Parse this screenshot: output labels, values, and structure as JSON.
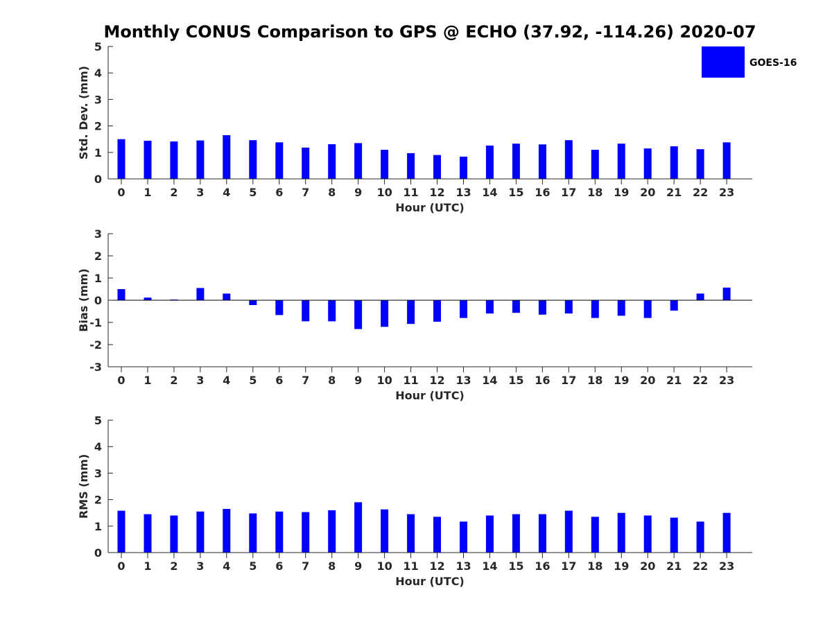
{
  "title": "Monthly CONUS Comparison to GPS @ ECHO (37.92, -114.26) 2020-07",
  "legend": {
    "label": "GOES-16",
    "color": "#0000ff",
    "placement": "top-right"
  },
  "bar_color": "#0000ff",
  "chart_data": [
    {
      "type": "bar",
      "categories": [
        "0",
        "1",
        "2",
        "3",
        "4",
        "5",
        "6",
        "7",
        "8",
        "9",
        "10",
        "11",
        "12",
        "13",
        "14",
        "15",
        "16",
        "17",
        "18",
        "19",
        "20",
        "21",
        "22",
        "23"
      ],
      "series": [
        {
          "name": "GOES-16",
          "values": [
            1.5,
            1.44,
            1.41,
            1.45,
            1.65,
            1.46,
            1.38,
            1.18,
            1.31,
            1.35,
            1.1,
            0.97,
            0.9,
            0.84,
            1.26,
            1.33,
            1.3,
            1.46,
            1.1,
            1.33,
            1.15,
            1.23,
            1.12,
            1.38
          ]
        }
      ],
      "ylabel": "Std. Dev. (mm)",
      "xlabel": "Hour (UTC)",
      "ylim": [
        0,
        5
      ],
      "yticks": [
        "0",
        "1",
        "2",
        "3",
        "4",
        "5"
      ],
      "grid": false
    },
    {
      "type": "bar",
      "categories": [
        "0",
        "1",
        "2",
        "3",
        "4",
        "5",
        "6",
        "7",
        "8",
        "9",
        "10",
        "11",
        "12",
        "13",
        "14",
        "15",
        "16",
        "17",
        "18",
        "19",
        "20",
        "21",
        "22",
        "23"
      ],
      "series": [
        {
          "name": "GOES-16",
          "values": [
            0.5,
            0.12,
            0.03,
            0.55,
            0.3,
            -0.22,
            -0.67,
            -0.95,
            -0.95,
            -1.3,
            -1.2,
            -1.07,
            -0.97,
            -0.8,
            -0.6,
            -0.57,
            -0.65,
            -0.6,
            -0.8,
            -0.7,
            -0.8,
            -0.47,
            0.3,
            0.57
          ]
        }
      ],
      "ylabel": "Bias (mm)",
      "xlabel": "Hour (UTC)",
      "ylim": [
        -3,
        3
      ],
      "yticks": [
        "-3",
        "-2",
        "-1",
        "0",
        "1",
        "2",
        "3"
      ],
      "grid": false
    },
    {
      "type": "bar",
      "categories": [
        "0",
        "1",
        "2",
        "3",
        "4",
        "5",
        "6",
        "7",
        "8",
        "9",
        "10",
        "11",
        "12",
        "13",
        "14",
        "15",
        "16",
        "17",
        "18",
        "19",
        "20",
        "21",
        "22",
        "23"
      ],
      "series": [
        {
          "name": "GOES-16",
          "values": [
            1.58,
            1.45,
            1.4,
            1.55,
            1.65,
            1.48,
            1.55,
            1.53,
            1.6,
            1.9,
            1.63,
            1.45,
            1.35,
            1.17,
            1.4,
            1.45,
            1.45,
            1.58,
            1.35,
            1.5,
            1.4,
            1.32,
            1.17,
            1.5
          ]
        }
      ],
      "ylabel": "RMS (mm)",
      "xlabel": "Hour (UTC)",
      "ylim": [
        0,
        5
      ],
      "yticks": [
        "0",
        "1",
        "2",
        "3",
        "4",
        "5"
      ],
      "grid": false
    }
  ]
}
